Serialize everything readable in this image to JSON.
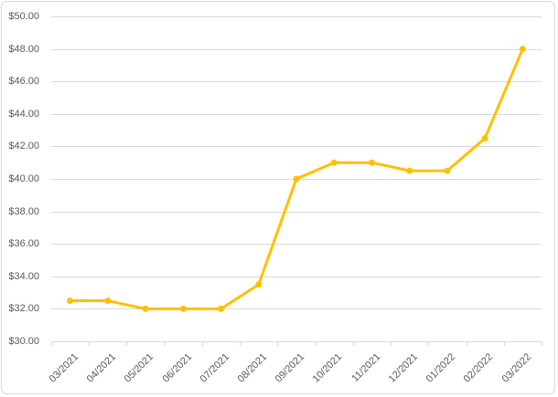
{
  "chart_data": {
    "type": "line",
    "title": "",
    "xlabel": "",
    "ylabel": "",
    "categories": [
      "03/2021",
      "04/2021",
      "05/2021",
      "06/2021",
      "07/2021",
      "08/2021",
      "09/2021",
      "10/2021",
      "11/2021",
      "12/2021",
      "01/2022",
      "02/2022",
      "03/2022"
    ],
    "values": [
      32.5,
      32.5,
      32.0,
      32.0,
      32.0,
      33.5,
      40.0,
      41.0,
      41.0,
      40.5,
      40.5,
      42.5,
      48.0
    ],
    "ylim": [
      30,
      50
    ],
    "y_tick_step": 2,
    "y_tick_labels": [
      "$50.00",
      "$48.00",
      "$46.00",
      "$44.00",
      "$42.00",
      "$40.00",
      "$38.00",
      "$36.00",
      "$34.00",
      "$32.00",
      "$30.00"
    ],
    "grid": true,
    "legend": "none",
    "marker": "circle",
    "colors": {
      "series": "#FFC000",
      "gridline": "#D9D9D9",
      "axis_line": "#D9D9D9",
      "axis_text": "#595959",
      "border": "#D9D9D9",
      "background": "#FFFFFF"
    }
  }
}
